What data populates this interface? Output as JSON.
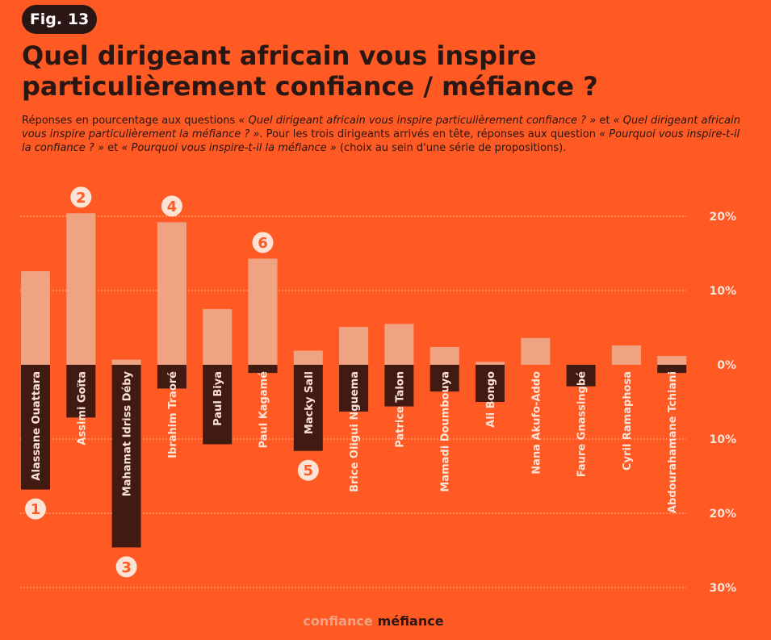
{
  "figure": {
    "badge": "Fig. 13",
    "title": "Quel dirigeant africain vous inspire particulièrement confiance / méfiance ?",
    "subtitle": {
      "p1": "Réponses en pourcentage aux questions ",
      "q1": "« Quel dirigeant africain vous inspire particulièrement confiance ? »",
      "p2": " et ",
      "q2": "« Quel dirigeant africain vous inspire particulièrement la méfiance ? »",
      "p3": ". Pour les trois dirigeants arrivés en tête, réponses aux question ",
      "q3": "« Pourquoi vous inspire-t-il la confiance ? »",
      "p4": " et ",
      "q4": "« Pourquoi vous inspire-t-il la méfiance »",
      "p5": " (choix au sein d'une série de propositions)."
    }
  },
  "colors": {
    "background": "#ff5a24",
    "confiance": "#f0a383",
    "mefiance": "#411a12",
    "text_dark": "#2a1612",
    "text_light": "#fde3d6"
  },
  "chart_data": {
    "type": "bar",
    "categories": [
      "Alassane Ouattara",
      "Assimi Goïta",
      "Mahamat Idriss Déby",
      "Ibrahim Traoré",
      "Paul Biya",
      "Paul Kagamé",
      "Macky Sall",
      "Brice Oligui Nguema",
      "Patrice Talon",
      "Mamadi Doumbouya",
      "Ali Bongo",
      "Nana Akufo-Addo",
      "Faure Gnassingbé",
      "Cyril Ramaphosa",
      "Abdourahamane Tchiani"
    ],
    "series": [
      {
        "name": "confiance",
        "direction": "up",
        "values": [
          12.6,
          20.4,
          0.7,
          19.2,
          7.5,
          14.3,
          1.9,
          5.1,
          5.5,
          2.4,
          0.4,
          3.6,
          0,
          2.6,
          1.2
        ]
      },
      {
        "name": "méfiance",
        "direction": "down",
        "values": [
          16.8,
          7.1,
          24.6,
          3.2,
          10.7,
          1.1,
          11.6,
          6.3,
          5.6,
          3.6,
          5.0,
          0,
          2.9,
          0,
          1.1
        ]
      }
    ],
    "yticks": [
      {
        "value": 20,
        "label": "20%"
      },
      {
        "value": 10,
        "label": "10%"
      },
      {
        "value": 0,
        "label": "0%"
      },
      {
        "value": -10,
        "label": "10%"
      },
      {
        "value": -20,
        "label": "20%"
      },
      {
        "value": -30,
        "label": "30%"
      }
    ],
    "ylim": [
      -30,
      20
    ],
    "rank_markers": [
      {
        "rank": "1",
        "category_index": 0,
        "series": "méfiance"
      },
      {
        "rank": "2",
        "category_index": 1,
        "series": "confiance"
      },
      {
        "rank": "3",
        "category_index": 2,
        "series": "méfiance"
      },
      {
        "rank": "4",
        "category_index": 3,
        "series": "confiance"
      },
      {
        "rank": "5",
        "category_index": 6,
        "series": "méfiance"
      },
      {
        "rank": "6",
        "category_index": 5,
        "series": "confiance"
      }
    ],
    "grid": true,
    "legend": {
      "position": "bottom-center",
      "items": [
        "confiance",
        "méfiance"
      ]
    }
  }
}
